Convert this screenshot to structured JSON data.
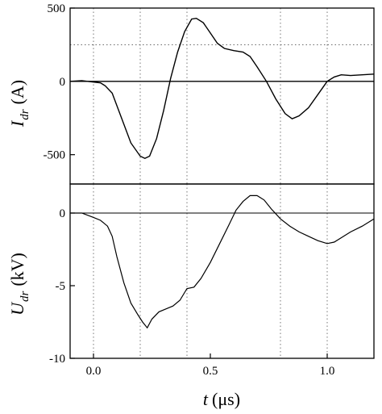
{
  "chart_data": [
    {
      "type": "line",
      "ylabel_main": "I",
      "ylabel_sub": "dr",
      "ylabel_unit": "(A)",
      "ylim": [
        -700,
        500
      ],
      "yticks": [
        -500,
        0,
        500
      ],
      "ytick_labels": [
        "-500",
        "0",
        "500"
      ],
      "xlim": [
        -0.1,
        1.2
      ],
      "grid": "dotted vertical at 0, 0.2, 0.4, 0.8, 1.0; dotted horizontal at 250",
      "zero_line": true,
      "series": [
        {
          "x": [
            -0.1,
            -0.05,
            0.0,
            0.03,
            0.05,
            0.08,
            0.12,
            0.16,
            0.2,
            0.22,
            0.24,
            0.27,
            0.3,
            0.33,
            0.36,
            0.39,
            0.42,
            0.44,
            0.47,
            0.5,
            0.53,
            0.56,
            0.6,
            0.64,
            0.67,
            0.7,
            0.74,
            0.78,
            0.82,
            0.85,
            0.88,
            0.92,
            0.96,
            1.0,
            1.03,
            1.06,
            1.1,
            1.15,
            1.2
          ],
          "y": [
            0,
            5,
            -5,
            -10,
            -30,
            -80,
            -250,
            -420,
            -510,
            -525,
            -510,
            -390,
            -200,
            20,
            200,
            340,
            425,
            430,
            400,
            330,
            260,
            225,
            210,
            200,
            170,
            100,
            0,
            -120,
            -220,
            -255,
            -235,
            -180,
            -90,
            0,
            30,
            45,
            40,
            45,
            50
          ]
        }
      ]
    },
    {
      "type": "line",
      "ylabel_main": "U",
      "ylabel_sub": "dr",
      "ylabel_unit": "(kV)",
      "ylim": [
        -10,
        2
      ],
      "yticks": [
        -10,
        -5,
        0
      ],
      "ytick_labels": [
        "-10",
        "-5",
        "0"
      ],
      "xlabel_main": "t",
      "xlabel_unit": "(μs)",
      "xlim": [
        -0.1,
        1.2
      ],
      "xticks": [
        0.0,
        0.5,
        1.0
      ],
      "xtick_labels": [
        "0.0",
        "0.5",
        "1.0"
      ],
      "grid": "dotted vertical at 0, 0.2, 0.4, 0.8, 1.0",
      "zero_line": true,
      "series": [
        {
          "x": [
            -0.1,
            -0.05,
            0.0,
            0.03,
            0.06,
            0.08,
            0.1,
            0.13,
            0.16,
            0.19,
            0.21,
            0.23,
            0.25,
            0.28,
            0.31,
            0.34,
            0.37,
            0.4,
            0.43,
            0.46,
            0.5,
            0.54,
            0.58,
            0.61,
            0.64,
            0.67,
            0.7,
            0.73,
            0.76,
            0.8,
            0.84,
            0.88,
            0.92,
            0.96,
            1.0,
            1.03,
            1.06,
            1.1,
            1.15,
            1.2
          ],
          "y": [
            0,
            0,
            -0.3,
            -0.5,
            -0.9,
            -1.6,
            -3.0,
            -4.8,
            -6.2,
            -7.0,
            -7.5,
            -7.9,
            -7.3,
            -6.8,
            -6.6,
            -6.4,
            -6.0,
            -5.2,
            -5.1,
            -4.5,
            -3.4,
            -2.1,
            -0.8,
            0.2,
            0.8,
            1.2,
            1.2,
            0.9,
            0.3,
            -0.4,
            -0.9,
            -1.3,
            -1.6,
            -1.9,
            -2.1,
            -2.0,
            -1.7,
            -1.3,
            -0.9,
            -0.4
          ]
        }
      ]
    }
  ]
}
